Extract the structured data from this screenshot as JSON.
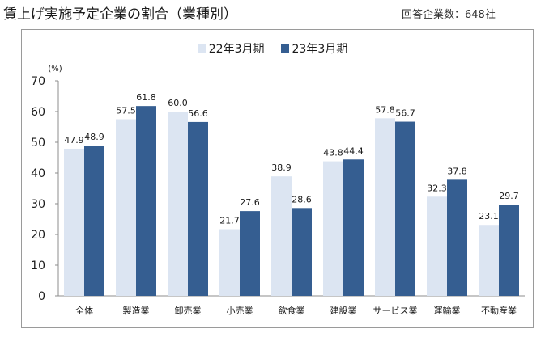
{
  "header": {
    "title": "賃上げ実施予定企業の割合（業種別）",
    "respondents": "回答企業数：648社"
  },
  "colors": {
    "series_2022": "#dce5f2",
    "series_2023": "#355e91",
    "axis": "#8c8c8c",
    "frame": "#9a9a9a"
  },
  "chart_data": {
    "type": "bar",
    "ylabel": "(%)",
    "ylim": [
      0,
      70
    ],
    "yticks": [
      0,
      10,
      20,
      30,
      40,
      50,
      60,
      70
    ],
    "grid": false,
    "legend_position": "top-center",
    "categories": [
      "全体",
      "製造業",
      "卸売業",
      "小売業",
      "飲食業",
      "建設業",
      "サービス業",
      "運輸業",
      "不動産業"
    ],
    "series": [
      {
        "name": "22年3月期",
        "values": [
          47.9,
          57.5,
          60.0,
          21.7,
          38.9,
          43.8,
          57.8,
          32.3,
          23.1
        ],
        "labels": [
          "47.9",
          "57.5",
          "60.0",
          "21.7",
          "38.9",
          "43.8",
          "57.8",
          "32.3",
          "23.1"
        ]
      },
      {
        "name": "23年3月期",
        "values": [
          48.9,
          61.8,
          56.6,
          27.6,
          28.6,
          44.4,
          56.7,
          37.8,
          29.7
        ],
        "labels": [
          "48.9",
          "61.8",
          "56.6",
          "27.6",
          "28.6",
          "44.4",
          "56.7",
          "37.8",
          "29.7"
        ]
      }
    ]
  }
}
